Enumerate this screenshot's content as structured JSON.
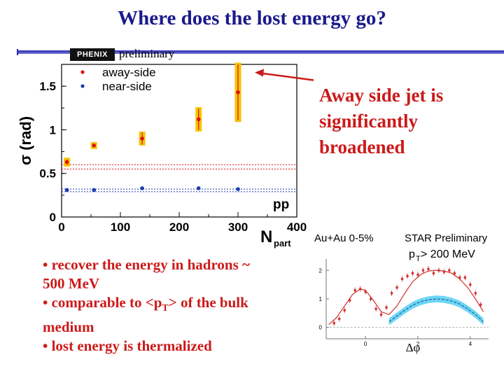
{
  "slide": {
    "title": "Where does the lost energy go?",
    "logo_text": "PHENIX",
    "preliminary_label": "preliminary",
    "annotation": [
      "Away side jet is",
      "significantly",
      "broadened"
    ],
    "bullets": [
      [
        "• recover the energy in hadrons ~",
        "500 MeV"
      ],
      [
        "• comparable to <p",
        "T",
        "> of the bulk",
        "medium"
      ],
      [
        "• lost energy is thermalized"
      ]
    ]
  },
  "colors": {
    "title": "#1a1a8c",
    "annotation": "#cc1a1a",
    "away_side": "#e01010",
    "near_side": "#1a3ab0",
    "systematic_band": "#f5c400",
    "inset_band": "#3cc8f0"
  },
  "chart_data": [
    {
      "type": "scatter",
      "ylabel": "σ (rad)",
      "xlabel": "N",
      "xlabel_subscript": "part",
      "xlim": [
        0,
        400
      ],
      "ylim": [
        0,
        1.75
      ],
      "x_ticks": [
        "0",
        "100",
        "200",
        "300",
        "400"
      ],
      "y_ticks": [
        "0",
        "0.5",
        "1",
        "1.5"
      ],
      "legend": {
        "position": "top-left",
        "entries": [
          "away-side",
          "near-side"
        ]
      },
      "annotation_text": "pp",
      "series": [
        {
          "name": "away-side",
          "x": [
            9,
            55,
            137,
            233,
            300
          ],
          "y": [
            0.63,
            0.82,
            0.9,
            1.12,
            1.43
          ],
          "err": [
            0.03,
            0.02,
            0.07,
            0.12,
            0.32
          ],
          "sys": [
            0.05,
            0.04,
            0.08,
            0.14,
            0.34
          ]
        },
        {
          "name": "near-side",
          "x": [
            9,
            55,
            137,
            233,
            300
          ],
          "y": [
            0.31,
            0.31,
            0.33,
            0.33,
            0.32
          ]
        }
      ],
      "pp_away_band": [
        0.55,
        0.6
      ],
      "pp_near_band": [
        0.29,
        0.32
      ]
    },
    {
      "type": "line",
      "label_left": "Au+Au 0-5%",
      "label_right": "STAR Preliminary",
      "condition_main": "p",
      "condition_sub": "T",
      "condition_rest": " > 200 MeV",
      "xlabel": "Δφ",
      "xlim": [
        -1.5,
        4.7
      ],
      "ylim": [
        -0.4,
        2.4
      ],
      "x_ticks": [
        "0",
        "2",
        "4"
      ],
      "y_ticks": [
        "0",
        "1",
        "2"
      ],
      "data_points": {
        "x": [
          -1.2,
          -1.0,
          -0.8,
          -0.6,
          -0.4,
          -0.2,
          0.0,
          0.2,
          0.4,
          0.6,
          0.8,
          1.0,
          1.2,
          1.4,
          1.6,
          1.8,
          2.0,
          2.2,
          2.4,
          2.6,
          2.8,
          3.0,
          3.2,
          3.4,
          3.6,
          3.8,
          4.0,
          4.2,
          4.4
        ],
        "y": [
          0.15,
          0.3,
          0.6,
          0.95,
          1.3,
          1.35,
          1.25,
          1.0,
          0.65,
          0.45,
          0.7,
          1.2,
          1.4,
          1.7,
          1.8,
          1.9,
          1.85,
          2.0,
          2.05,
          1.9,
          2.0,
          1.95,
          2.0,
          1.9,
          1.75,
          1.75,
          1.5,
          1.2,
          0.8
        ]
      },
      "fit_curve": {
        "x": [
          -1.4,
          -1.1,
          -0.8,
          -0.5,
          -0.2,
          0.0,
          0.3,
          0.6,
          0.9,
          1.2,
          1.5,
          1.8,
          2.1,
          2.4,
          2.7,
          3.0,
          3.3,
          3.6,
          3.9,
          4.2,
          4.5
        ],
        "y": [
          0.1,
          0.35,
          0.75,
          1.15,
          1.35,
          1.3,
          0.95,
          0.55,
          0.45,
          0.75,
          1.2,
          1.6,
          1.85,
          1.98,
          2.0,
          1.98,
          1.9,
          1.7,
          1.4,
          1.0,
          0.55
        ]
      },
      "band_center": {
        "x": [
          0.9,
          1.2,
          1.5,
          1.8,
          2.1,
          2.4,
          2.7,
          3.0,
          3.3,
          3.6,
          3.9,
          4.2,
          4.5
        ],
        "y": [
          0.2,
          0.4,
          0.6,
          0.78,
          0.9,
          0.97,
          1.0,
          0.98,
          0.92,
          0.82,
          0.65,
          0.45,
          0.2
        ]
      },
      "band_halfwidth": 0.12
    }
  ]
}
